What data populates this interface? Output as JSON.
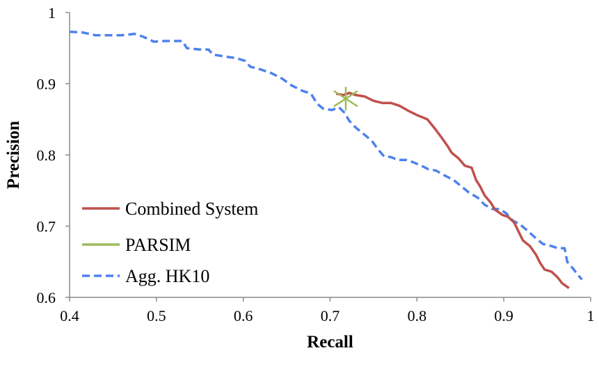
{
  "chart_data": {
    "type": "line",
    "title": "",
    "xlabel": "Recall",
    "ylabel": "Precision",
    "xlim": [
      0.4,
      1
    ],
    "ylim": [
      0.6,
      1
    ],
    "xticks": [
      0.4,
      0.5,
      0.6,
      0.7,
      0.8,
      0.9,
      1
    ],
    "yticks": [
      0.6,
      0.7,
      0.8,
      0.9,
      1
    ],
    "xtick_labels": [
      "0.4",
      "0.5",
      "0.6",
      "0.7",
      "0.8",
      "0.9",
      "1"
    ],
    "ytick_labels": [
      "0.6",
      "0.7",
      "0.8",
      "0.9",
      "1"
    ],
    "grid": false,
    "legend_position": "bottom-left",
    "series": [
      {
        "name": "Combined System",
        "color": "#c0504d",
        "style": "solid",
        "points": [
          [
            0.707,
            0.886
          ],
          [
            0.715,
            0.884
          ],
          [
            0.722,
            0.887
          ],
          [
            0.73,
            0.884
          ],
          [
            0.74,
            0.882
          ],
          [
            0.75,
            0.876
          ],
          [
            0.76,
            0.873
          ],
          [
            0.77,
            0.873
          ],
          [
            0.78,
            0.869
          ],
          [
            0.79,
            0.862
          ],
          [
            0.8,
            0.856
          ],
          [
            0.812,
            0.85
          ],
          [
            0.82,
            0.838
          ],
          [
            0.828,
            0.825
          ],
          [
            0.835,
            0.813
          ],
          [
            0.84,
            0.803
          ],
          [
            0.848,
            0.795
          ],
          [
            0.855,
            0.785
          ],
          [
            0.863,
            0.782
          ],
          [
            0.868,
            0.765
          ],
          [
            0.873,
            0.755
          ],
          [
            0.878,
            0.743
          ],
          [
            0.885,
            0.733
          ],
          [
            0.89,
            0.723
          ],
          [
            0.898,
            0.716
          ],
          [
            0.905,
            0.713
          ],
          [
            0.912,
            0.705
          ],
          [
            0.918,
            0.69
          ],
          [
            0.922,
            0.68
          ],
          [
            0.93,
            0.672
          ],
          [
            0.937,
            0.66
          ],
          [
            0.942,
            0.648
          ],
          [
            0.947,
            0.639
          ],
          [
            0.955,
            0.636
          ],
          [
            0.962,
            0.628
          ],
          [
            0.967,
            0.62
          ],
          [
            0.975,
            0.613
          ]
        ]
      },
      {
        "name": "PARSIM",
        "color": "#9bbb59",
        "style": "marker",
        "points": [
          [
            0.718,
            0.879
          ]
        ]
      },
      {
        "name": "Agg. HK10",
        "color": "#4f81ed",
        "style": "dashed",
        "points": [
          [
            0.4,
            0.973
          ],
          [
            0.415,
            0.972
          ],
          [
            0.43,
            0.968
          ],
          [
            0.46,
            0.968
          ],
          [
            0.475,
            0.97
          ],
          [
            0.485,
            0.966
          ],
          [
            0.497,
            0.959
          ],
          [
            0.51,
            0.96
          ],
          [
            0.53,
            0.96
          ],
          [
            0.535,
            0.95
          ],
          [
            0.55,
            0.948
          ],
          [
            0.56,
            0.948
          ],
          [
            0.565,
            0.941
          ],
          [
            0.58,
            0.938
          ],
          [
            0.592,
            0.936
          ],
          [
            0.602,
            0.932
          ],
          [
            0.608,
            0.924
          ],
          [
            0.62,
            0.92
          ],
          [
            0.632,
            0.915
          ],
          [
            0.645,
            0.907
          ],
          [
            0.655,
            0.898
          ],
          [
            0.668,
            0.89
          ],
          [
            0.678,
            0.886
          ],
          [
            0.685,
            0.872
          ],
          [
            0.692,
            0.865
          ],
          [
            0.702,
            0.863
          ],
          [
            0.71,
            0.867
          ],
          [
            0.716,
            0.86
          ],
          [
            0.722,
            0.848
          ],
          [
            0.73,
            0.838
          ],
          [
            0.74,
            0.828
          ],
          [
            0.748,
            0.82
          ],
          [
            0.755,
            0.808
          ],
          [
            0.762,
            0.798
          ],
          [
            0.77,
            0.797
          ],
          [
            0.778,
            0.793
          ],
          [
            0.788,
            0.793
          ],
          [
            0.795,
            0.79
          ],
          [
            0.805,
            0.785
          ],
          [
            0.813,
            0.78
          ],
          [
            0.822,
            0.778
          ],
          [
            0.832,
            0.771
          ],
          [
            0.842,
            0.765
          ],
          [
            0.85,
            0.757
          ],
          [
            0.86,
            0.747
          ],
          [
            0.87,
            0.74
          ],
          [
            0.878,
            0.73
          ],
          [
            0.887,
            0.724
          ],
          [
            0.895,
            0.724
          ],
          [
            0.903,
            0.718
          ],
          [
            0.91,
            0.708
          ],
          [
            0.918,
            0.703
          ],
          [
            0.928,
            0.693
          ],
          [
            0.935,
            0.685
          ],
          [
            0.945,
            0.675
          ],
          [
            0.955,
            0.672
          ],
          [
            0.962,
            0.669
          ],
          [
            0.97,
            0.669
          ],
          [
            0.973,
            0.65
          ],
          [
            0.98,
            0.64
          ],
          [
            0.985,
            0.632
          ],
          [
            0.99,
            0.625
          ]
        ]
      }
    ]
  }
}
